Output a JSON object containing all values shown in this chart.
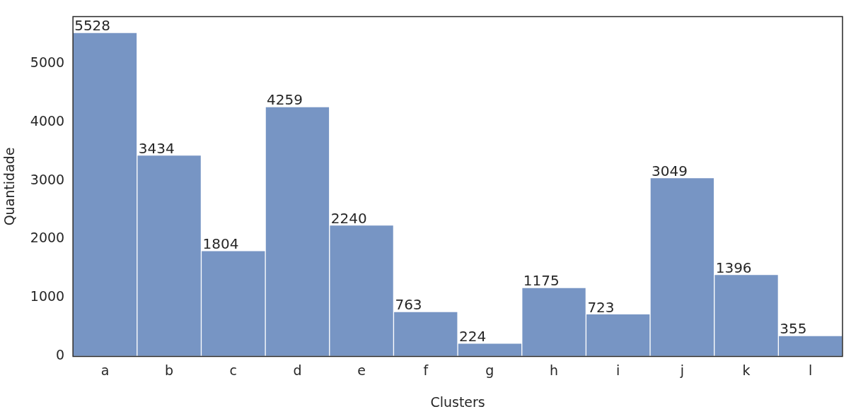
{
  "chart_data": {
    "type": "bar",
    "xlabel": "Clusters",
    "ylabel": "Quantidade",
    "categories": [
      "a",
      "b",
      "c",
      "d",
      "e",
      "f",
      "g",
      "h",
      "i",
      "j",
      "k",
      "l"
    ],
    "values": [
      5528,
      3434,
      1804,
      4259,
      2240,
      763,
      224,
      1175,
      723,
      3049,
      1396,
      355
    ],
    "color": "#7795c4",
    "ylim": [
      0,
      5800
    ],
    "yticks": [
      0,
      1000,
      2000,
      3000,
      4000,
      5000
    ],
    "grid": false,
    "legend": false,
    "data_labels": true
  }
}
